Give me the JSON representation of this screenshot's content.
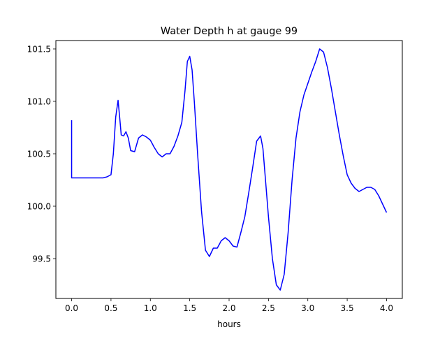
{
  "chart_data": {
    "type": "line",
    "title": "Water Depth h at gauge 99",
    "xlabel": "hours",
    "ylabel": "",
    "xlim": [
      -0.2,
      4.2
    ],
    "ylim": [
      99.12,
      101.58
    ],
    "xticks": [
      0.0,
      0.5,
      1.0,
      1.5,
      2.0,
      2.5,
      3.0,
      3.5,
      4.0
    ],
    "xtick_labels": [
      "0.0",
      "0.5",
      "1.0",
      "1.5",
      "2.0",
      "2.5",
      "3.0",
      "3.5",
      "4.0"
    ],
    "yticks": [
      99.5,
      100.0,
      100.5,
      101.0,
      101.5
    ],
    "ytick_labels": [
      "99.5",
      "100.0",
      "100.5",
      "101.0",
      "101.5"
    ],
    "grid": false,
    "series": [
      {
        "color": "#0000ff",
        "x": [
          0.0,
          0.0,
          0.1,
          0.2,
          0.3,
          0.4,
          0.45,
          0.5,
          0.53,
          0.56,
          0.59,
          0.61,
          0.63,
          0.66,
          0.69,
          0.72,
          0.75,
          0.8,
          0.85,
          0.9,
          0.95,
          1.0,
          1.05,
          1.1,
          1.15,
          1.2,
          1.25,
          1.3,
          1.35,
          1.4,
          1.44,
          1.47,
          1.5,
          1.53,
          1.56,
          1.6,
          1.65,
          1.7,
          1.75,
          1.8,
          1.85,
          1.9,
          1.95,
          2.0,
          2.05,
          2.1,
          2.15,
          2.2,
          2.25,
          2.3,
          2.35,
          2.4,
          2.43,
          2.47,
          2.5,
          2.55,
          2.6,
          2.65,
          2.7,
          2.75,
          2.8,
          2.85,
          2.9,
          2.95,
          3.0,
          3.05,
          3.1,
          3.15,
          3.2,
          3.25,
          3.3,
          3.35,
          3.4,
          3.45,
          3.5,
          3.55,
          3.6,
          3.65,
          3.7,
          3.75,
          3.8,
          3.85,
          3.9,
          3.95,
          4.0
        ],
        "y": [
          100.82,
          100.27,
          100.27,
          100.27,
          100.27,
          100.27,
          100.28,
          100.3,
          100.5,
          100.85,
          101.01,
          100.85,
          100.68,
          100.67,
          100.71,
          100.65,
          100.53,
          100.52,
          100.65,
          100.68,
          100.66,
          100.63,
          100.56,
          100.5,
          100.47,
          100.5,
          100.5,
          100.57,
          100.67,
          100.8,
          101.1,
          101.38,
          101.43,
          101.3,
          100.98,
          100.5,
          99.95,
          99.58,
          99.52,
          99.6,
          99.6,
          99.67,
          99.7,
          99.67,
          99.62,
          99.61,
          99.75,
          99.9,
          100.13,
          100.37,
          100.62,
          100.67,
          100.55,
          100.18,
          99.9,
          99.5,
          99.25,
          99.2,
          99.35,
          99.75,
          100.25,
          100.65,
          100.9,
          101.06,
          101.17,
          101.28,
          101.38,
          101.5,
          101.47,
          101.32,
          101.12,
          100.9,
          100.68,
          100.48,
          100.3,
          100.22,
          100.17,
          100.14,
          100.16,
          100.18,
          100.18,
          100.16,
          100.1,
          100.02,
          99.94
        ]
      }
    ]
  }
}
